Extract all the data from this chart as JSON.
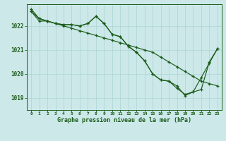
{
  "title": "Graphe pression niveau de la mer (hPa)",
  "bg_color": "#cce8e8",
  "grid_color": "#aad4d4",
  "line_color": "#1a5c1a",
  "xlim": [
    -0.5,
    23.5
  ],
  "ylim": [
    1018.5,
    1022.9
  ],
  "yticks": [
    1019,
    1020,
    1021,
    1022
  ],
  "xticks": [
    0,
    1,
    2,
    3,
    4,
    5,
    6,
    7,
    8,
    9,
    10,
    11,
    12,
    13,
    14,
    15,
    16,
    17,
    18,
    19,
    20,
    21,
    22,
    23
  ],
  "series1": [
    1022.7,
    1022.3,
    1022.2,
    1022.1,
    1022.0,
    1021.9,
    1021.8,
    1021.7,
    1021.6,
    1021.5,
    1021.4,
    1021.3,
    1021.2,
    1021.1,
    1021.0,
    1020.9,
    1020.7,
    1020.5,
    1020.3,
    1020.1,
    1019.9,
    1019.7,
    1019.6,
    1019.5
  ],
  "series2": [
    1022.6,
    1022.3,
    1022.2,
    1022.1,
    1022.05,
    1022.05,
    1022.0,
    1022.1,
    1022.4,
    1022.1,
    1021.65,
    1021.55,
    1021.15,
    1020.9,
    1020.55,
    1020.0,
    1019.75,
    1019.7,
    1019.4,
    1019.15,
    1019.25,
    1019.85,
    1020.45,
    1021.05
  ],
  "series3": [
    1022.6,
    1022.2,
    1022.2,
    1022.1,
    1022.05,
    1022.05,
    1022.0,
    1022.1,
    1022.4,
    1022.1,
    1021.65,
    1021.55,
    1021.15,
    1020.9,
    1020.55,
    1020.0,
    1019.75,
    1019.7,
    1019.5,
    1019.1,
    1019.25,
    1019.35,
    1020.5,
    1021.05
  ]
}
